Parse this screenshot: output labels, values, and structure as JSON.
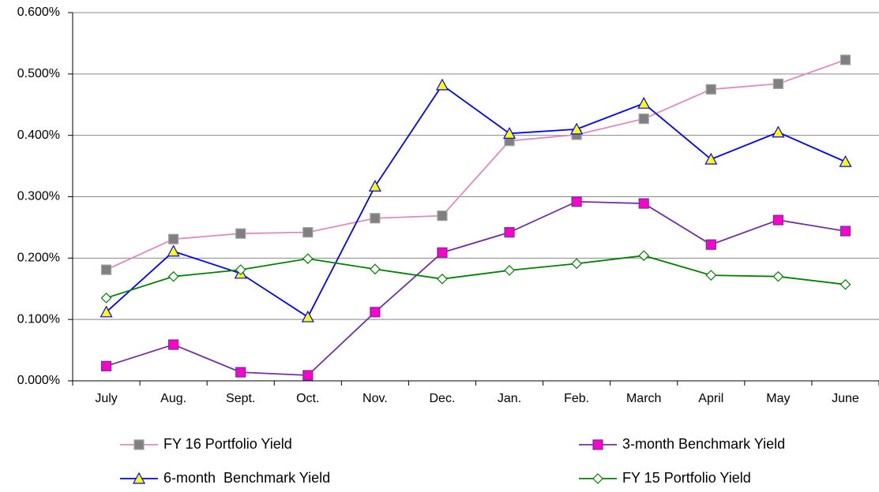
{
  "chart_data": {
    "type": "line",
    "categories": [
      "July",
      "Aug.",
      "Sept.",
      "Oct.",
      "Nov.",
      "Dec.",
      "Jan.",
      "Feb.",
      "March",
      "April",
      "May",
      "June"
    ],
    "series": [
      {
        "name": "FY 16 Portfolio Yield",
        "color": "#e08ac4",
        "marker": "square",
        "marker_color": "#808080",
        "values": [
          0.181,
          0.231,
          0.24,
          0.242,
          0.265,
          0.269,
          0.391,
          0.401,
          0.427,
          0.475,
          0.484,
          0.523
        ]
      },
      {
        "name": "3-month Benchmark Yield",
        "color": "#7030a0",
        "marker": "square",
        "marker_color": "#ff00cc",
        "values": [
          0.024,
          0.059,
          0.014,
          0.009,
          0.112,
          0.209,
          0.242,
          0.292,
          0.289,
          0.222,
          0.262,
          0.244
        ]
      },
      {
        "name": "6-month  Benchmark Yield",
        "color": "#0000ff",
        "marker": "triangle",
        "marker_color": "#ffff00",
        "values": [
          0.112,
          0.211,
          0.175,
          0.104,
          0.317,
          0.482,
          0.403,
          0.41,
          0.452,
          0.361,
          0.405,
          0.357
        ]
      },
      {
        "name": "FY 15 Portfolio Yield",
        "color": "#008000",
        "marker": "diamond",
        "marker_color": "#ffffff",
        "values": [
          0.135,
          0.17,
          0.181,
          0.199,
          0.182,
          0.166,
          0.18,
          0.191,
          0.204,
          0.172,
          0.17,
          0.157
        ]
      }
    ],
    "ylim": [
      0,
      0.6
    ],
    "yticks": [
      {
        "value": 0,
        "label": "0.000%"
      },
      {
        "value": 0.1,
        "label": "0.100%"
      },
      {
        "value": 0.2,
        "label": "0.200%"
      },
      {
        "value": 0.3,
        "label": "0.300%"
      },
      {
        "value": 0.4,
        "label": "0.400%"
      },
      {
        "value": 0.5,
        "label": "0.500%"
      },
      {
        "value": 0.6,
        "label": "0.600%"
      }
    ],
    "grid": true
  }
}
